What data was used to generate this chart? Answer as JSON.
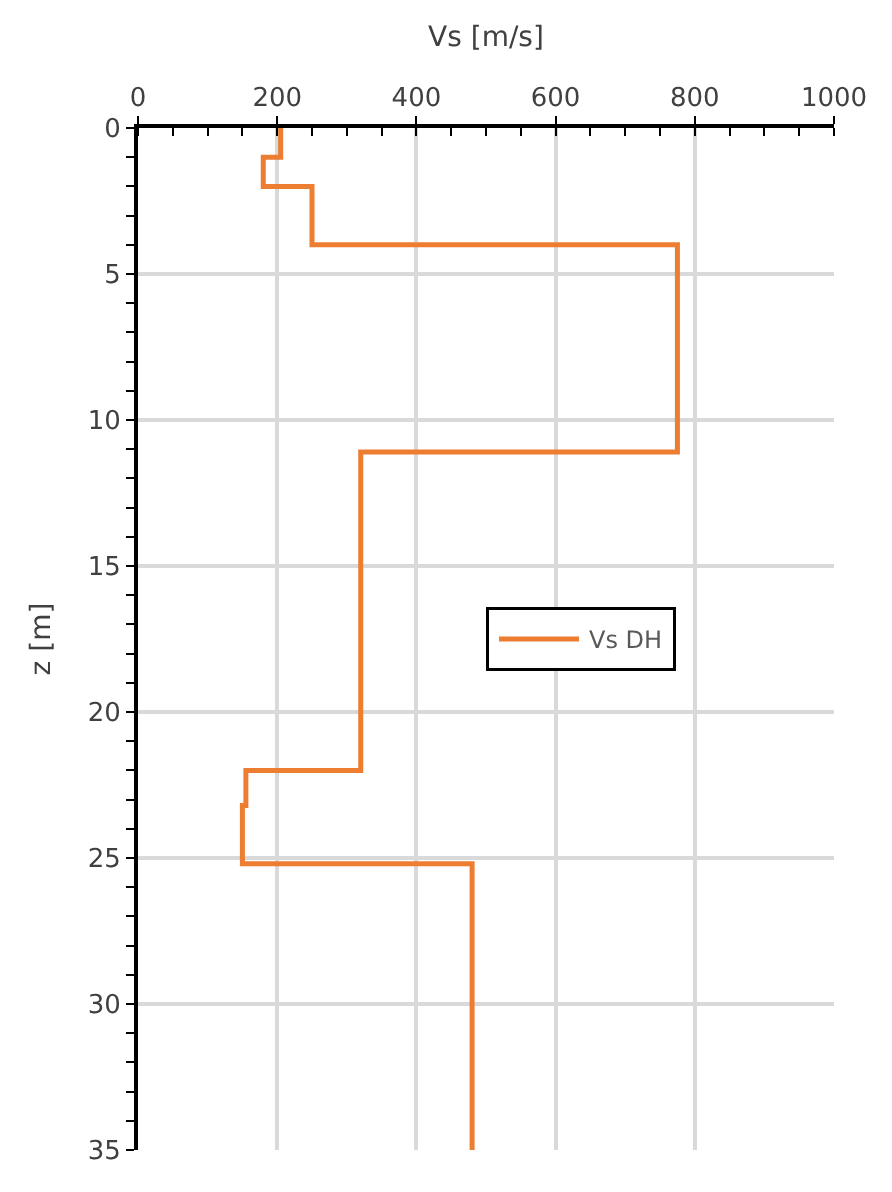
{
  "chart_data": {
    "type": "line",
    "xlabel": "Vs [m/s]",
    "ylabel": "z [m]",
    "xlim": [
      0,
      1000
    ],
    "xticks": [
      0,
      200,
      400,
      600,
      800,
      1000
    ],
    "ylim": [
      35,
      0
    ],
    "yticks": [
      0,
      5,
      10,
      15,
      20,
      25,
      30,
      35
    ],
    "grid": true,
    "legend": "right",
    "marker": "none",
    "line_style": "solid",
    "series": [
      {
        "name": "Vs DH",
        "color": "#ed7d31",
        "x": [
          205,
          205,
          180,
          180,
          250,
          250,
          775,
          775,
          320,
          320,
          155,
          155,
          150,
          150,
          480,
          480
        ],
        "values": [
          0,
          1,
          1,
          2,
          2,
          4,
          4,
          11.1,
          11.1,
          22,
          22,
          23.2,
          23.2,
          25.2,
          25.2,
          35
        ]
      }
    ]
  }
}
